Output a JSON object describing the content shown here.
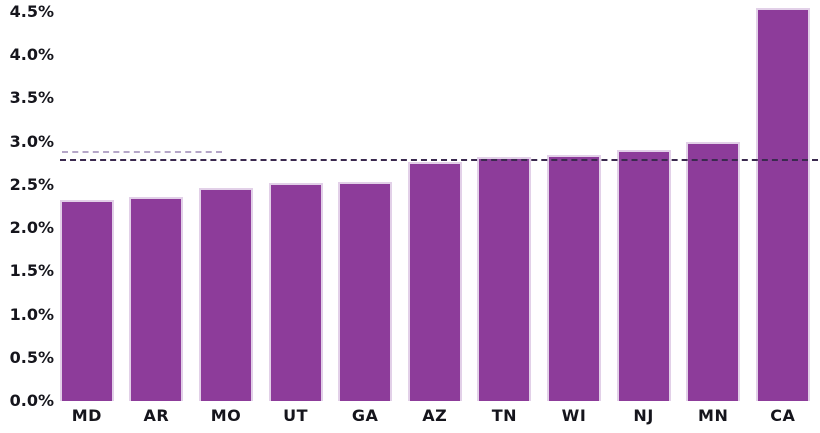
{
  "chart_data": {
    "type": "bar",
    "title": "",
    "xlabel": "",
    "ylabel": "",
    "categories": [
      "MD",
      "AR",
      "MO",
      "UT",
      "GA",
      "AZ",
      "TN",
      "WI",
      "NJ",
      "MN",
      "CA"
    ],
    "values": [
      2.32,
      2.36,
      2.46,
      2.52,
      2.53,
      2.77,
      2.82,
      2.85,
      2.9,
      3.0,
      4.55
    ],
    "unit": "%",
    "ylim": [
      0,
      4.5
    ],
    "y_ticks": [
      {
        "value": 0.0,
        "label": "0.0%"
      },
      {
        "value": 0.5,
        "label": "0.5%"
      },
      {
        "value": 1.0,
        "label": "1.0%"
      },
      {
        "value": 1.5,
        "label": "1.5%"
      },
      {
        "value": 2.0,
        "label": "2.0%"
      },
      {
        "value": 2.5,
        "label": "2.5%"
      },
      {
        "value": 3.0,
        "label": "3.0%"
      },
      {
        "value": 3.5,
        "label": "3.5%"
      },
      {
        "value": 4.0,
        "label": "4.0%"
      },
      {
        "value": 4.5,
        "label": "4.5%"
      }
    ],
    "grid": false,
    "legend": null,
    "reference_lines": [
      {
        "id": "reference-line-dark-full",
        "value": 2.79,
        "style": "dashed",
        "color": "#3b2a4f",
        "extent": "full-width"
      },
      {
        "id": "reference-line-light-partial",
        "value": 2.88,
        "style": "dashed",
        "color": "#b5a6c8",
        "extent": "left-partial"
      }
    ],
    "colors": {
      "bar_fill": "#8d3c9a",
      "bar_edge": "#e2d0e8",
      "axis_text": "#15151c",
      "reference_dark": "#3b2a4f",
      "reference_light": "#b5a6c8",
      "background": "#ffffff"
    }
  }
}
